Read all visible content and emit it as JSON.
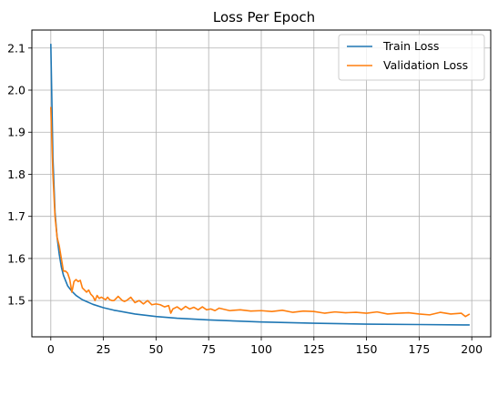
{
  "chart_data": {
    "type": "line",
    "title": "Loss Per Epoch",
    "xlabel": "",
    "ylabel": "",
    "xlim": [
      -9,
      209
    ],
    "ylim": [
      1.4138,
      2.1428
    ],
    "xticks": [
      0,
      25,
      50,
      75,
      100,
      125,
      150,
      175,
      200
    ],
    "xtick_labels": [
      "0",
      "25",
      "50",
      "75",
      "100",
      "125",
      "150",
      "175",
      "200"
    ],
    "yticks": [
      1.5,
      1.6,
      1.7,
      1.8,
      1.9,
      2.0,
      2.1
    ],
    "ytick_labels": [
      "1.5",
      "1.6",
      "1.7",
      "1.8",
      "1.9",
      "2.0",
      "2.1"
    ],
    "grid": true,
    "legend_position": "top-right",
    "series": [
      {
        "name": "Train Loss",
        "color": "#1f77b4",
        "x": [
          0,
          1,
          2,
          3,
          4,
          5,
          6,
          8,
          10,
          12,
          15,
          20,
          25,
          30,
          40,
          50,
          60,
          75,
          100,
          125,
          150,
          175,
          199
        ],
        "y": [
          2.11,
          1.84,
          1.71,
          1.65,
          1.61,
          1.58,
          1.56,
          1.535,
          1.522,
          1.512,
          1.502,
          1.491,
          1.483,
          1.477,
          1.468,
          1.462,
          1.458,
          1.454,
          1.449,
          1.446,
          1.444,
          1.443,
          1.442
        ]
      },
      {
        "name": "Validation Loss",
        "color": "#ff7f0e",
        "x": [
          0,
          1,
          2,
          3,
          4,
          5,
          6,
          7,
          8,
          9,
          10,
          11,
          12,
          13,
          14,
          15,
          16,
          17,
          18,
          19,
          20,
          21,
          22,
          23,
          24,
          25,
          26,
          27,
          28,
          29,
          30,
          32,
          34,
          35,
          36,
          38,
          40,
          42,
          44,
          46,
          48,
          50,
          52,
          54,
          56,
          57,
          58,
          60,
          62,
          64,
          66,
          68,
          70,
          72,
          74,
          76,
          78,
          80,
          85,
          90,
          95,
          100,
          105,
          110,
          115,
          120,
          125,
          130,
          135,
          140,
          145,
          150,
          155,
          160,
          165,
          170,
          175,
          180,
          185,
          190,
          195,
          197,
          199
        ],
        "y": [
          1.96,
          1.8,
          1.7,
          1.65,
          1.63,
          1.6,
          1.57,
          1.57,
          1.565,
          1.55,
          1.52,
          1.545,
          1.55,
          1.545,
          1.548,
          1.53,
          1.525,
          1.52,
          1.525,
          1.515,
          1.51,
          1.5,
          1.512,
          1.505,
          1.508,
          1.505,
          1.502,
          1.508,
          1.502,
          1.5,
          1.5,
          1.51,
          1.5,
          1.498,
          1.5,
          1.508,
          1.495,
          1.5,
          1.492,
          1.5,
          1.49,
          1.492,
          1.49,
          1.485,
          1.488,
          1.47,
          1.48,
          1.485,
          1.478,
          1.486,
          1.48,
          1.484,
          1.478,
          1.485,
          1.478,
          1.48,
          1.476,
          1.482,
          1.476,
          1.478,
          1.475,
          1.476,
          1.474,
          1.477,
          1.472,
          1.475,
          1.474,
          1.47,
          1.473,
          1.471,
          1.472,
          1.47,
          1.473,
          1.468,
          1.47,
          1.471,
          1.468,
          1.466,
          1.472,
          1.468,
          1.47,
          1.462,
          1.468
        ]
      }
    ]
  }
}
